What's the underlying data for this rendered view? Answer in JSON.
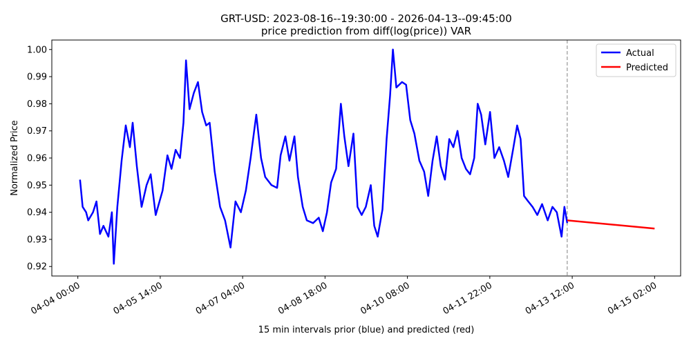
{
  "chart_data": {
    "type": "line",
    "title": "GRT-USD: 2023-08-16--19:30:00 - 2026-04-13--09:45:00",
    "subtitle": "price prediction from diff(log(price)) VAR",
    "xlabel": "15 min intervals prior (blue) and predicted (red)",
    "ylabel": "Normalized Price",
    "x_units": "hours since 04-04 00:00",
    "xlim": [
      -12,
      278
    ],
    "ylim": [
      0.9165,
      1.0035
    ],
    "x_ticks": [
      {
        "value": 0,
        "label": "04-04 00:00"
      },
      {
        "value": 38,
        "label": "04-05 14:00"
      },
      {
        "value": 76,
        "label": "04-07 04:00"
      },
      {
        "value": 114,
        "label": "04-08 18:00"
      },
      {
        "value": 152,
        "label": "04-10 08:00"
      },
      {
        "value": 190,
        "label": "04-11 22:00"
      },
      {
        "value": 228,
        "label": "04-13 12:00"
      },
      {
        "value": 266,
        "label": "04-15 02:00"
      }
    ],
    "y_ticks": [
      0.92,
      0.93,
      0.94,
      0.95,
      0.96,
      0.97,
      0.98,
      0.99,
      1.0
    ],
    "y_tick_labels": [
      "0.92",
      "0.93",
      "0.94",
      "0.95",
      "0.96",
      "0.97",
      "0.98",
      "0.99",
      "1.00"
    ],
    "vline_x": 225.7,
    "legend": {
      "placement": "top-right",
      "entries": [
        "Actual",
        "Predicted"
      ]
    },
    "colors": {
      "actual": "#0000ff",
      "predicted": "#ff0000",
      "vline": "#808080"
    },
    "series": [
      {
        "name": "Actual",
        "x": [
          1,
          2.2,
          3.8,
          4.8,
          7,
          8.6,
          10.2,
          11.8,
          14.1,
          15.7,
          16.6,
          18.2,
          20.2,
          22.1,
          24,
          25.3,
          27.2,
          29.4,
          31.7,
          33.6,
          35.9,
          39.1,
          41.3,
          43.2,
          45.1,
          47.1,
          48.7,
          49.9,
          51.5,
          53.5,
          55.4,
          57.3,
          59.2,
          60.8,
          63.1,
          65.6,
          67.9,
          70.4,
          72.7,
          75.2,
          77.5,
          79.7,
          82.3,
          84.5,
          86.4,
          89.3,
          91.9,
          93.5,
          95.7,
          97.6,
          99.9,
          101.5,
          103.7,
          105.6,
          108.5,
          111.1,
          113,
          114.9,
          116.8,
          119.1,
          121.3,
          122.9,
          124.8,
          127.1,
          129,
          130.9,
          132.8,
          135.1,
          136.7,
          138.3,
          140.5,
          142.4,
          144,
          145.3,
          146.9,
          149.5,
          151.4,
          153.3,
          155.2,
          157.5,
          159.7,
          161.6,
          163.6,
          165.5,
          167.4,
          169.3,
          171.3,
          173.2,
          175.1,
          177,
          179,
          180.9,
          182.8,
          184.4,
          186,
          187.9,
          190.1,
          192.1,
          194.3,
          196.5,
          198.5,
          200.7,
          202.6,
          204.2,
          205.8,
          207.7,
          209.7,
          211.9,
          214.1,
          216.7,
          218.9,
          220.9,
          223.1,
          224.4,
          225.7
        ],
        "y": [
          0.952,
          0.942,
          0.94,
          0.937,
          0.94,
          0.944,
          0.932,
          0.935,
          0.931,
          0.94,
          0.921,
          0.942,
          0.959,
          0.972,
          0.964,
          0.973,
          0.957,
          0.942,
          0.95,
          0.954,
          0.939,
          0.948,
          0.961,
          0.956,
          0.963,
          0.96,
          0.973,
          0.996,
          0.978,
          0.984,
          0.988,
          0.977,
          0.972,
          0.973,
          0.955,
          0.942,
          0.937,
          0.927,
          0.944,
          0.94,
          0.948,
          0.96,
          0.976,
          0.96,
          0.953,
          0.95,
          0.949,
          0.961,
          0.968,
          0.959,
          0.968,
          0.953,
          0.942,
          0.937,
          0.936,
          0.938,
          0.933,
          0.94,
          0.951,
          0.956,
          0.98,
          0.968,
          0.957,
          0.969,
          0.942,
          0.939,
          0.942,
          0.95,
          0.935,
          0.931,
          0.941,
          0.967,
          0.983,
          1.0,
          0.986,
          0.988,
          0.987,
          0.974,
          0.969,
          0.959,
          0.955,
          0.946,
          0.959,
          0.968,
          0.957,
          0.952,
          0.967,
          0.964,
          0.97,
          0.96,
          0.956,
          0.954,
          0.96,
          0.98,
          0.976,
          0.965,
          0.977,
          0.96,
          0.964,
          0.959,
          0.953,
          0.963,
          0.972,
          0.967,
          0.946,
          0.944,
          0.942,
          0.939,
          0.943,
          0.937,
          0.942,
          0.94,
          0.931,
          0.942,
          0.936
        ]
      },
      {
        "name": "Predicted",
        "x": [
          225.7,
          266
        ],
        "y": [
          0.937,
          0.934
        ]
      }
    ]
  }
}
